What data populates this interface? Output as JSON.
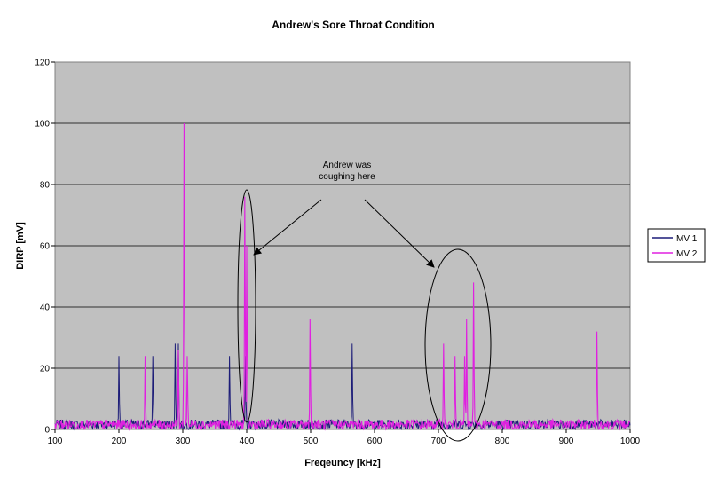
{
  "chart_data": {
    "type": "line",
    "title": "Andrew's Sore Throat Condition",
    "xlabel": "Freqeuncy [kHz]",
    "ylabel": "DIRP [mV]",
    "xlim": [
      100,
      1000
    ],
    "ylim": [
      0,
      120
    ],
    "x_ticks": [
      100,
      200,
      300,
      400,
      500,
      600,
      700,
      800,
      900,
      1000
    ],
    "y_ticks": [
      0,
      20,
      40,
      60,
      80,
      100,
      120
    ],
    "grid": "horizontal",
    "plot_background": "#c0c0c0",
    "legend_position": "right",
    "noise_level": 2,
    "series": [
      {
        "name": "MV 1",
        "color": "#1c1c78",
        "peaks": [
          [
            200,
            24
          ],
          [
            253,
            24
          ],
          [
            288,
            28
          ],
          [
            293,
            28
          ],
          [
            373,
            24
          ],
          [
            398,
            24
          ],
          [
            565,
            28
          ]
        ]
      },
      {
        "name": "MV 2",
        "color": "#e020e0",
        "peaks": [
          [
            241,
            24
          ],
          [
            293,
            26
          ],
          [
            302,
            100
          ],
          [
            307,
            24
          ],
          [
            397,
            76
          ],
          [
            400,
            60
          ],
          [
            499,
            36
          ],
          [
            708,
            28
          ],
          [
            726,
            24
          ],
          [
            741,
            24
          ],
          [
            744,
            36
          ],
          [
            755,
            48
          ],
          [
            948,
            32
          ]
        ]
      }
    ],
    "annotations": [
      {
        "text_lines": [
          "Andrew was",
          "coughing here"
        ]
      }
    ]
  }
}
